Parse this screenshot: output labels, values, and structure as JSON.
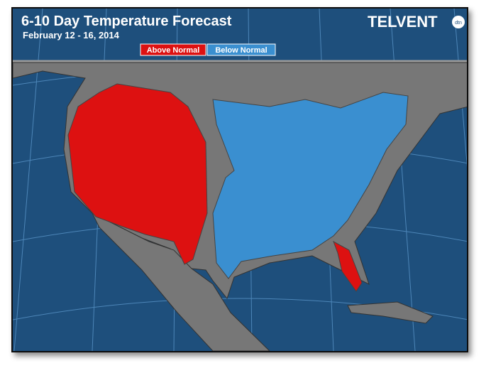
{
  "header": {
    "title": "6-10 Day Temperature Forecast",
    "subtitle": "February 12 - 16, 2014"
  },
  "legend": {
    "items": [
      {
        "label": "Above Normal",
        "color": "#dd1111"
      },
      {
        "label": "Below Normal",
        "color": "#3a8fd0"
      }
    ]
  },
  "logo": {
    "name": "TELVENT",
    "badge": "dtn"
  }
}
